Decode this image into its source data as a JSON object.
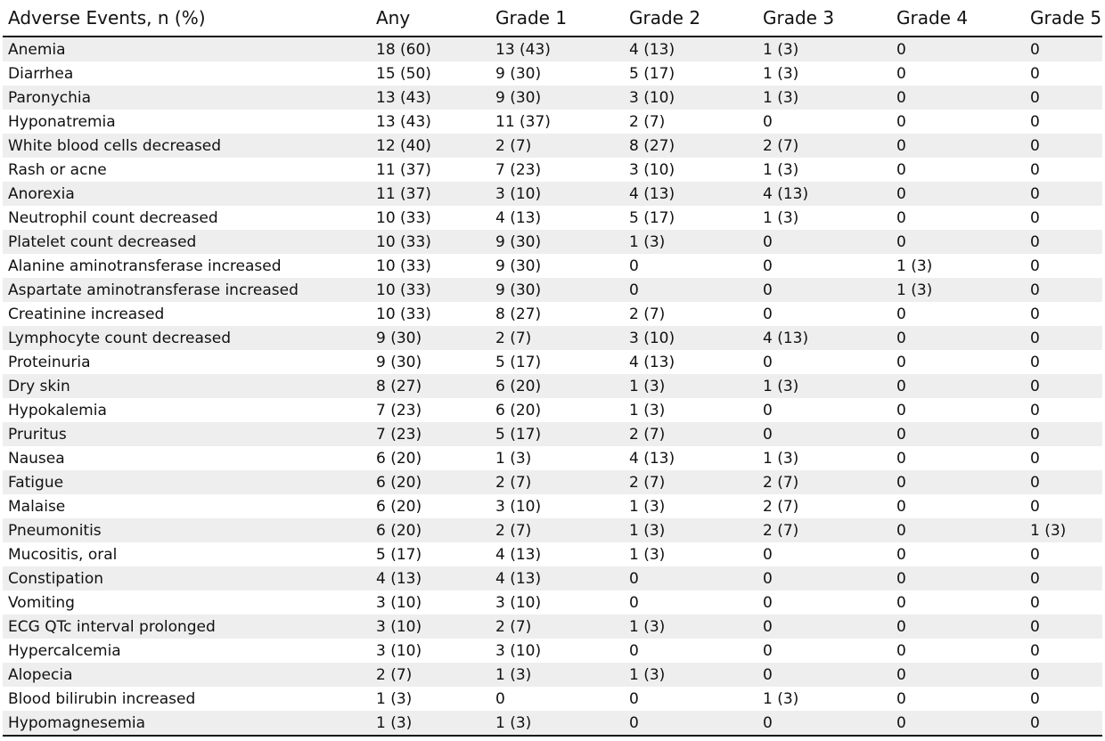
{
  "table": {
    "headers": [
      "Adverse Events, n (%)",
      "Any",
      "Grade 1",
      "Grade 2",
      "Grade 3",
      "Grade 4",
      "Grade 5"
    ],
    "rows": [
      [
        "Anemia",
        "18 (60)",
        "13 (43)",
        "4 (13)",
        "1 (3)",
        "0",
        "0"
      ],
      [
        "Diarrhea",
        "15 (50)",
        "9 (30)",
        "5 (17)",
        "1 (3)",
        "0",
        "0"
      ],
      [
        "Paronychia",
        "13 (43)",
        "9 (30)",
        "3 (10)",
        "1 (3)",
        "0",
        "0"
      ],
      [
        "Hyponatremia",
        "13 (43)",
        "11 (37)",
        "2 (7)",
        "0",
        "0",
        "0"
      ],
      [
        "White blood cells decreased",
        "12 (40)",
        "2 (7)",
        "8 (27)",
        "2 (7)",
        "0",
        "0"
      ],
      [
        "Rash or acne",
        "11 (37)",
        "7 (23)",
        "3 (10)",
        "1 (3)",
        "0",
        "0"
      ],
      [
        "Anorexia",
        "11 (37)",
        "3 (10)",
        "4 (13)",
        "4 (13)",
        "0",
        "0"
      ],
      [
        "Neutrophil count decreased",
        "10 (33)",
        "4 (13)",
        "5 (17)",
        "1 (3)",
        "0",
        "0"
      ],
      [
        "Platelet count decreased",
        "10 (33)",
        "9 (30)",
        "1 (3)",
        "0",
        "0",
        "0"
      ],
      [
        "Alanine aminotransferase increased",
        "10 (33)",
        "9 (30)",
        "0",
        "0",
        "1 (3)",
        "0"
      ],
      [
        "Aspartate aminotransferase increased",
        "10 (33)",
        "9 (30)",
        "0",
        "0",
        "1 (3)",
        "0"
      ],
      [
        "Creatinine increased",
        "10 (33)",
        "8 (27)",
        "2 (7)",
        "0",
        "0",
        "0"
      ],
      [
        "Lymphocyte count decreased",
        "9 (30)",
        "2 (7)",
        "3 (10)",
        "4 (13)",
        "0",
        "0"
      ],
      [
        "Proteinuria",
        "9 (30)",
        "5 (17)",
        "4 (13)",
        "0",
        "0",
        "0"
      ],
      [
        "Dry skin",
        "8 (27)",
        "6 (20)",
        "1 (3)",
        "1 (3)",
        "0",
        "0"
      ],
      [
        "Hypokalemia",
        "7 (23)",
        "6 (20)",
        "1 (3)",
        "0",
        "0",
        "0"
      ],
      [
        "Pruritus",
        "7 (23)",
        "5 (17)",
        "2 (7)",
        "0",
        "0",
        "0"
      ],
      [
        "Nausea",
        "6 (20)",
        "1 (3)",
        "4 (13)",
        "1 (3)",
        "0",
        "0"
      ],
      [
        "Fatigue",
        "6 (20)",
        "2 (7)",
        "2 (7)",
        "2 (7)",
        "0",
        "0"
      ],
      [
        "Malaise",
        "6 (20)",
        "3 (10)",
        "1 (3)",
        "2 (7)",
        "0",
        "0"
      ],
      [
        "Pneumonitis",
        "6 (20)",
        "2 (7)",
        "1 (3)",
        "2 (7)",
        "0",
        "1 (3)"
      ],
      [
        "Mucositis, oral",
        "5 (17)",
        "4 (13)",
        "1 (3)",
        "0",
        "0",
        "0"
      ],
      [
        "Constipation",
        "4 (13)",
        "4 (13)",
        "0",
        "0",
        "0",
        "0"
      ],
      [
        "Vomiting",
        "3 (10)",
        "3 (10)",
        "0",
        "0",
        "0",
        "0"
      ],
      [
        "ECG QTc interval prolonged",
        "3 (10)",
        "2 (7)",
        "1 (3)",
        "0",
        "0",
        "0"
      ],
      [
        "Hypercalcemia",
        "3 (10)",
        "3 (10)",
        "0",
        "0",
        "0",
        "0"
      ],
      [
        "Alopecia",
        "2 (7)",
        "1 (3)",
        "1 (3)",
        "0",
        "0",
        "0"
      ],
      [
        "Blood bilirubin increased",
        "1 (3)",
        "0",
        "0",
        "1 (3)",
        "0",
        "0"
      ],
      [
        "Hypomagnesemia",
        "1 (3)",
        "1 (3)",
        "0",
        "0",
        "0",
        "0"
      ]
    ]
  }
}
